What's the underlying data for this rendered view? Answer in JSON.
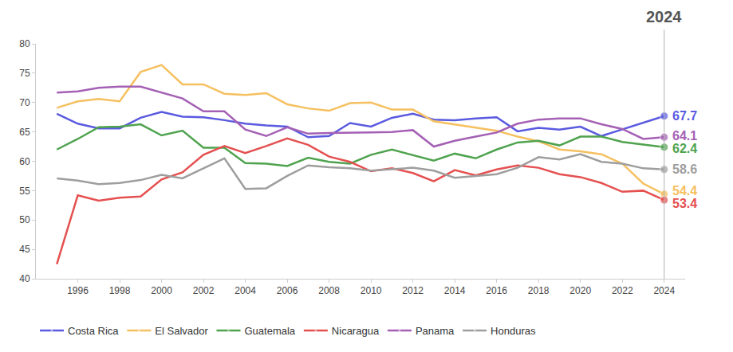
{
  "chart_data": {
    "type": "line",
    "x": [
      1995,
      1996,
      1997,
      1998,
      1999,
      2000,
      2001,
      2002,
      2003,
      2004,
      2005,
      2006,
      2007,
      2008,
      2009,
      2010,
      2011,
      2012,
      2013,
      2014,
      2015,
      2016,
      2017,
      2018,
      2019,
      2020,
      2021,
      2022,
      2023,
      2024
    ],
    "series": [
      {
        "name": "Costa Rica",
        "color": "#5a5ae0",
        "values": [
          68.1,
          66.4,
          65.6,
          65.6,
          67.4,
          68.4,
          67.6,
          67.5,
          67.0,
          66.4,
          66.1,
          65.9,
          64.1,
          64.3,
          66.5,
          65.9,
          67.4,
          68.1,
          67.1,
          67.0,
          67.3,
          67.5,
          65.1,
          65.7,
          65.4,
          65.9,
          64.3,
          65.4,
          66.5,
          67.7
        ]
      },
      {
        "name": "El Salvador",
        "color": "#f5c060",
        "values": [
          69.1,
          70.2,
          70.6,
          70.2,
          75.2,
          76.4,
          73.1,
          73.1,
          71.5,
          71.3,
          71.6,
          69.7,
          69.0,
          68.6,
          69.9,
          70.0,
          68.8,
          68.8,
          66.8,
          66.3,
          65.8,
          65.2,
          64.2,
          63.4,
          62.0,
          61.7,
          61.2,
          59.6,
          56.2,
          54.4
        ]
      },
      {
        "name": "Guatemala",
        "color": "#4fa34f",
        "values": [
          62.0,
          63.8,
          65.8,
          65.9,
          66.3,
          64.4,
          65.2,
          62.3,
          62.3,
          59.7,
          59.6,
          59.2,
          60.6,
          59.9,
          59.6,
          61.1,
          62.0,
          61.0,
          60.1,
          61.3,
          60.5,
          62.0,
          63.2,
          63.5,
          62.7,
          64.2,
          64.2,
          63.3,
          62.8,
          62.4
        ]
      },
      {
        "name": "Nicaragua",
        "color": "#e55050",
        "values": [
          42.5,
          54.2,
          53.3,
          53.8,
          54.0,
          56.9,
          58.1,
          61.1,
          62.6,
          61.4,
          62.6,
          63.9,
          62.8,
          60.8,
          59.9,
          58.3,
          58.8,
          58.0,
          56.6,
          58.5,
          57.6,
          58.6,
          59.3,
          58.9,
          57.8,
          57.3,
          56.3,
          54.8,
          55.0,
          53.4
        ]
      },
      {
        "name": "Panama",
        "color": "#a460b4",
        "values": [
          71.7,
          71.9,
          72.5,
          72.7,
          72.7,
          71.7,
          70.7,
          68.5,
          68.5,
          65.4,
          64.3,
          65.8,
          64.7,
          64.8,
          64.8,
          64.9,
          65.0,
          65.3,
          62.5,
          63.5,
          64.2,
          64.9,
          66.4,
          67.1,
          67.3,
          67.3,
          66.3,
          65.5,
          63.8,
          64.1
        ]
      },
      {
        "name": "Honduras",
        "color": "#9e9e9e",
        "values": [
          57.1,
          56.7,
          56.1,
          56.3,
          56.8,
          57.7,
          57.1,
          58.8,
          60.5,
          55.3,
          55.4,
          57.5,
          59.3,
          59.0,
          58.8,
          58.4,
          58.6,
          58.9,
          58.4,
          57.2,
          57.5,
          57.8,
          58.9,
          60.7,
          60.3,
          61.2,
          59.9,
          59.6,
          58.8,
          58.6
        ]
      }
    ],
    "xlim": [
      1994,
      2025
    ],
    "xticks": [
      1996,
      1998,
      2000,
      2002,
      2004,
      2006,
      2008,
      2010,
      2012,
      2014,
      2016,
      2018,
      2020,
      2022,
      2024
    ],
    "ylim": [
      40,
      80
    ],
    "yticks": [
      40,
      45,
      50,
      55,
      60,
      65,
      70,
      75,
      80
    ],
    "grid": false,
    "legend": "bottom",
    "data_labels": true,
    "annotations": [
      {
        "x": 2024,
        "text": "2024"
      }
    ]
  }
}
